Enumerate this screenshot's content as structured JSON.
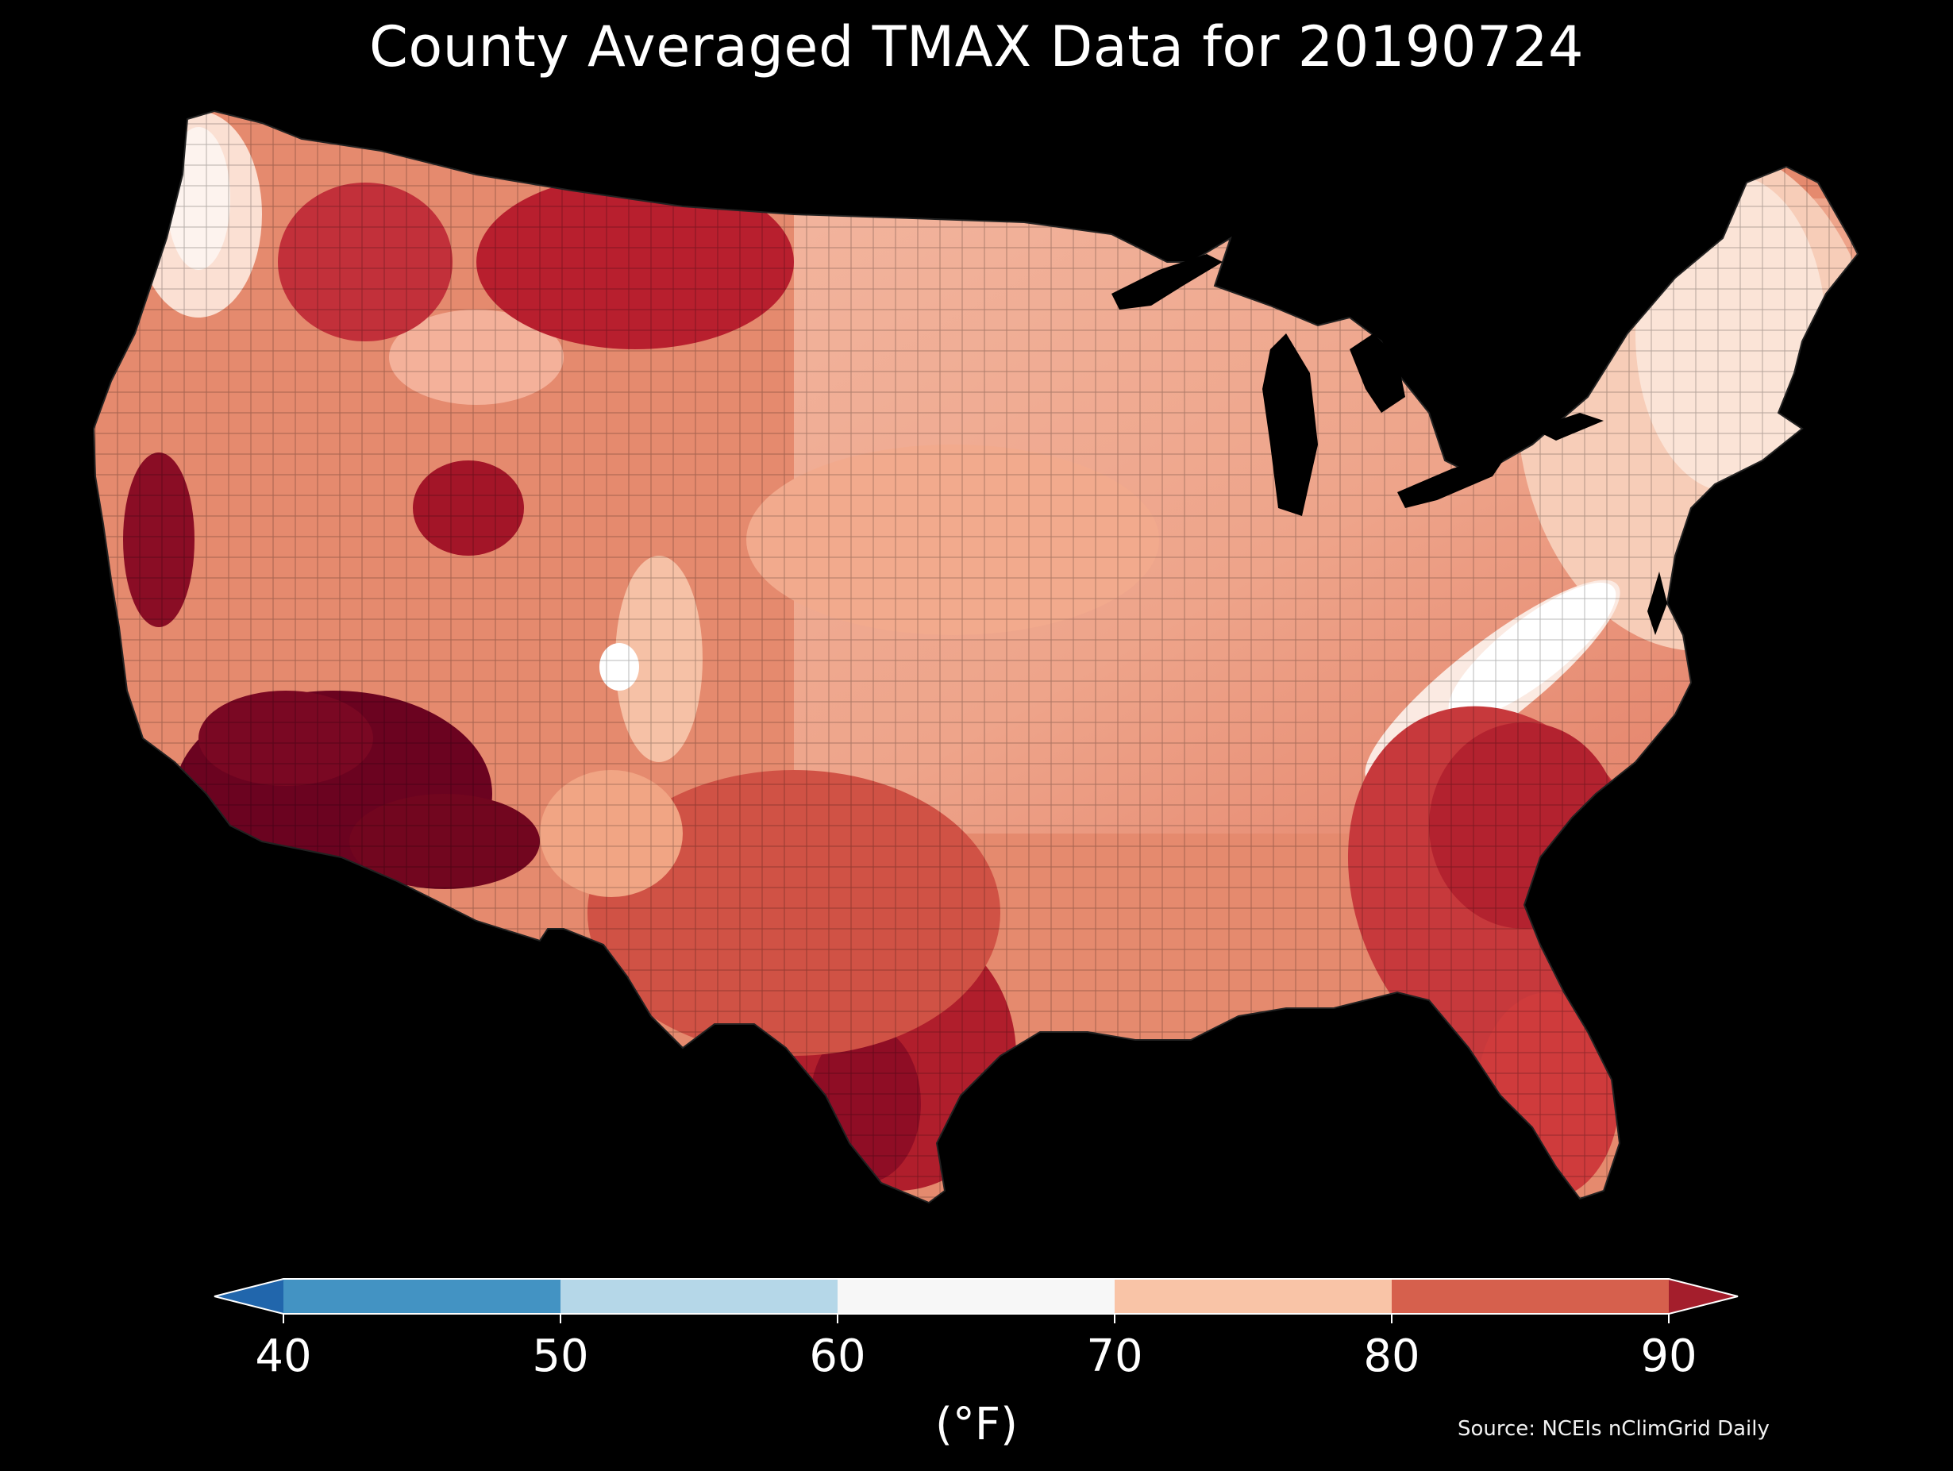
{
  "title": "County Averaged TMAX Data for 20190724",
  "colorbar": {
    "ticks": [
      "40",
      "50",
      "60",
      "70",
      "80",
      "90"
    ],
    "unit": "(°F)",
    "bins": [
      {
        "range": "<40",
        "color": "#2166ac"
      },
      {
        "range": "40-50",
        "color": "#4393c3"
      },
      {
        "range": "50-60",
        "color": "#b5d7e8"
      },
      {
        "range": "60-70",
        "color": "#f7f7f7"
      },
      {
        "range": "70-80",
        "color": "#f9c4a7"
      },
      {
        "range": "80-90",
        "color": "#d6604d"
      },
      {
        "range": ">90",
        "color": "#a41e2c"
      }
    ]
  },
  "map_palette": {
    "coolest": "#fbeae2",
    "cool": "#f4b49a",
    "mid": "#e58a6e",
    "warm": "#d6604d",
    "hot": "#c03037",
    "hottest": "#6b0320"
  },
  "source": "Source: NCEIs nClimGrid Daily"
}
